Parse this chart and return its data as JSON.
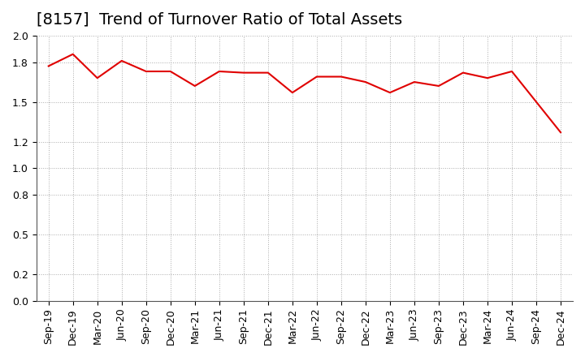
{
  "title": "[8157]  Trend of Turnover Ratio of Total Assets",
  "labels": [
    "Sep-19",
    "Dec-19",
    "Mar-20",
    "Jun-20",
    "Sep-20",
    "Dec-20",
    "Mar-21",
    "Jun-21",
    "Sep-21",
    "Dec-21",
    "Mar-22",
    "Jun-22",
    "Sep-22",
    "Dec-22",
    "Mar-23",
    "Jun-23",
    "Sep-23",
    "Dec-23",
    "Mar-24",
    "Jun-24",
    "Sep-24",
    "Dec-24"
  ],
  "values": [
    1.77,
    1.86,
    1.68,
    1.81,
    1.73,
    1.73,
    1.62,
    1.73,
    1.72,
    1.72,
    1.57,
    1.69,
    1.69,
    1.65,
    1.57,
    1.65,
    1.62,
    1.72,
    1.68,
    1.73,
    1.5,
    1.27
  ],
  "line_color": "#e00000",
  "background_color": "#ffffff",
  "plot_bg_color": "#ffffff",
  "ylim": [
    0.0,
    2.0
  ],
  "yticks": [
    0.0,
    0.2,
    0.5,
    0.8,
    1.0,
    1.2,
    1.5,
    1.8,
    2.0
  ],
  "grid_color": "#aaaaaa",
  "title_fontsize": 14,
  "tick_fontsize": 9
}
